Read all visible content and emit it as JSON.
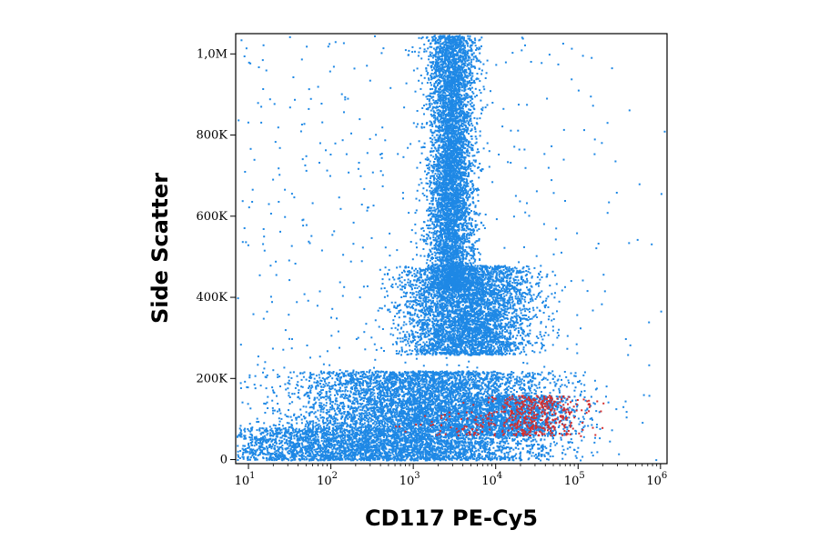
{
  "chart_data": {
    "type": "scatter",
    "title": "",
    "xlabel": "CD117 PE-Cy5",
    "ylabel": "Side Scatter",
    "x_scale": "log",
    "xlim": [
      7,
      1200000
    ],
    "ylim": [
      -10000,
      1050000
    ],
    "x_ticks": [
      {
        "value": 10,
        "base": "10",
        "exp": "1"
      },
      {
        "value": 100,
        "base": "10",
        "exp": "2"
      },
      {
        "value": 1000,
        "base": "10",
        "exp": "3"
      },
      {
        "value": 10000,
        "base": "10",
        "exp": "4"
      },
      {
        "value": 100000,
        "base": "10",
        "exp": "5"
      },
      {
        "value": 1000000,
        "base": "10",
        "exp": "6"
      }
    ],
    "y_ticks": [
      {
        "value": 0,
        "label": "0"
      },
      {
        "value": 200000,
        "label": "200K"
      },
      {
        "value": 400000,
        "label": "400K"
      },
      {
        "value": 600000,
        "label": "600K"
      },
      {
        "value": 800000,
        "label": "800K"
      },
      {
        "value": 1000000,
        "label": "1,0M"
      }
    ],
    "grid": false,
    "legend": "none",
    "series": [
      {
        "color": "#1e88e5",
        "regions": [
          {
            "x_center_log": 3.45,
            "x_spread_log": 0.14,
            "y_range": [
              420000,
              1050000
            ],
            "density": 5500
          },
          {
            "x_center_log": 3.65,
            "x_spread_log": 0.38,
            "y_range": [
              260000,
              480000
            ],
            "density": 4500
          },
          {
            "x_center_log": 3.1,
            "x_spread_log": 0.75,
            "y_range": [
              0,
              220000
            ],
            "density": 7000
          },
          {
            "x_center_log": 1.7,
            "x_spread_log": 0.7,
            "y_range": [
              0,
              80000
            ],
            "density": 1500
          },
          {
            "x_center_log": 4.2,
            "x_spread_log": 0.35,
            "y_range": [
              60000,
              160000
            ],
            "density": 1200
          },
          {
            "x_center_log": 2.8,
            "x_spread_log": 1.6,
            "y_range": [
              0,
              1050000
            ],
            "density": 700
          }
        ]
      },
      {
        "color": "#d32f2f",
        "regions": [
          {
            "x_center_log": 4.45,
            "x_spread_log": 0.3,
            "y_range": [
              60000,
              160000
            ],
            "density": 420
          },
          {
            "x_center_log": 3.5,
            "x_spread_log": 0.3,
            "y_range": [
              60000,
              120000
            ],
            "density": 60
          }
        ]
      }
    ]
  }
}
